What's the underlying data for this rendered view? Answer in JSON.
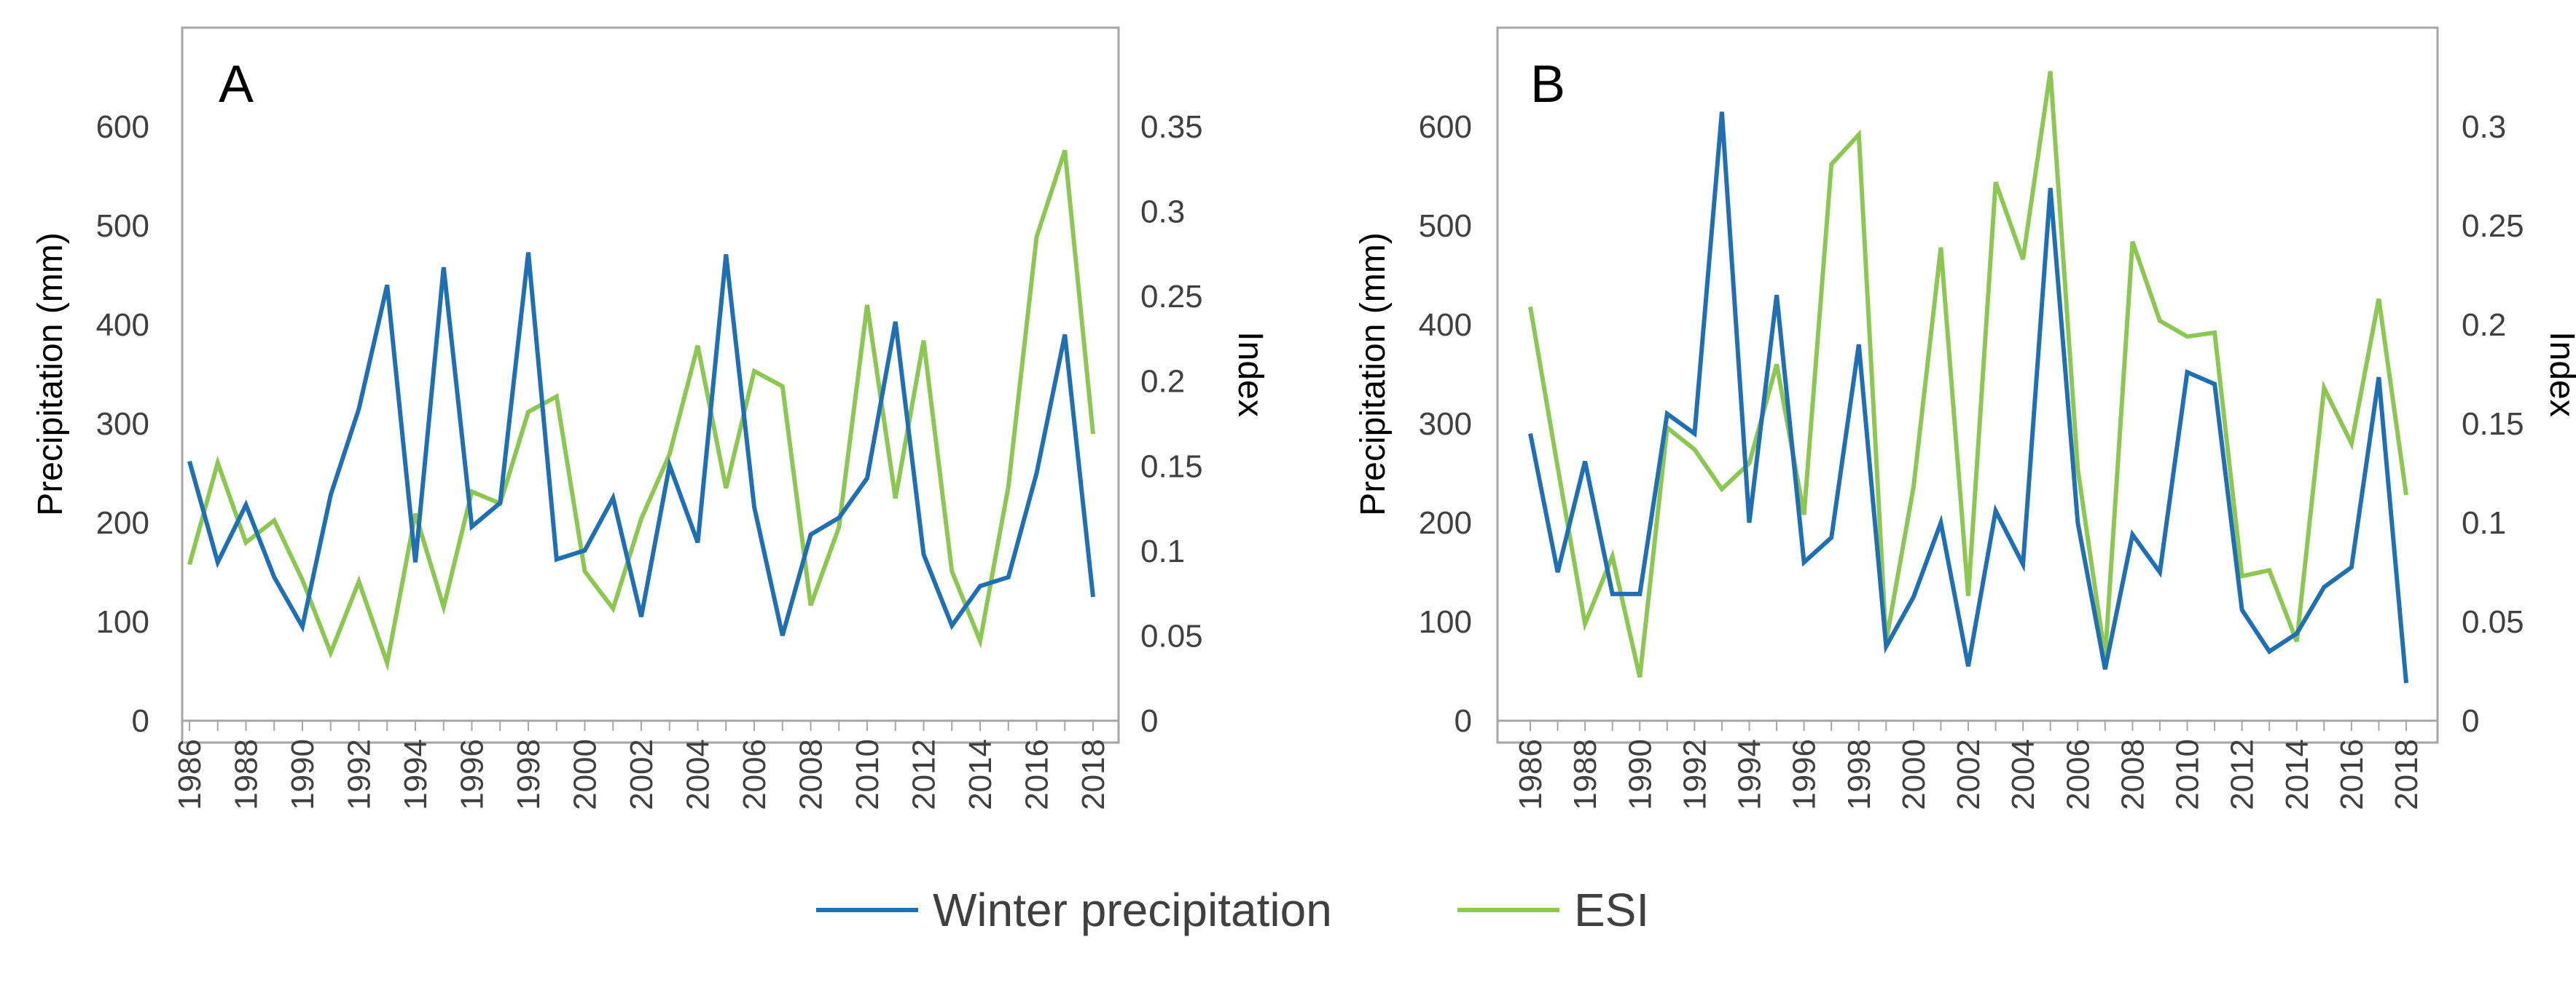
{
  "chart_data": [
    {
      "type": "line",
      "panel_label": "A",
      "x": [
        1986,
        1987,
        1988,
        1989,
        1990,
        1991,
        1992,
        1993,
        1994,
        1995,
        1996,
        1997,
        1998,
        1999,
        2000,
        2001,
        2002,
        2003,
        2004,
        2005,
        2006,
        2007,
        2008,
        2009,
        2010,
        2011,
        2012,
        2013,
        2014,
        2015,
        2016,
        2017,
        2018
      ],
      "x_ticks": [
        "1986",
        "1988",
        "1990",
        "1992",
        "1994",
        "1996",
        "1998",
        "2000",
        "2002",
        "2004",
        "2006",
        "2008",
        "2010",
        "2012",
        "2014",
        "2016",
        "2018"
      ],
      "ylabel_left": "Precipitation (mm)",
      "ylabel_right": "Index",
      "ylim_left": [
        0,
        700
      ],
      "yticks_left": [
        "0",
        "100",
        "200",
        "300",
        "400",
        "500",
        "600"
      ],
      "ylim_right": [
        0,
        0.40833
      ],
      "yticks_right": [
        "0",
        "0.05",
        "0.1",
        "0.15",
        "0.2",
        "0.25",
        "0.3",
        "0.35"
      ],
      "series": [
        {
          "name": "Winter precipitation",
          "axis": "left",
          "values": [
            262,
            160,
            218,
            145,
            95,
            228,
            315,
            440,
            160,
            458,
            196,
            220,
            473,
            163,
            172,
            225,
            105,
            258,
            180,
            471,
            216,
            86,
            188,
            205,
            245,
            403,
            168,
            96,
            136,
            145,
            250,
            390,
            125
          ]
        },
        {
          "name": "ESI",
          "axis": "right",
          "values": [
            0.092,
            0.152,
            0.105,
            0.118,
            0.083,
            0.04,
            0.082,
            0.034,
            0.122,
            0.067,
            0.135,
            0.128,
            0.182,
            0.191,
            0.088,
            0.066,
            0.119,
            0.157,
            0.221,
            0.137,
            0.206,
            0.197,
            0.068,
            0.114,
            0.245,
            0.131,
            0.224,
            0.088,
            0.047,
            0.138,
            0.285,
            0.336,
            0.169
          ]
        }
      ]
    },
    {
      "type": "line",
      "panel_label": "B",
      "x": [
        1986,
        1987,
        1988,
        1989,
        1990,
        1991,
        1992,
        1993,
        1994,
        1995,
        1996,
        1997,
        1998,
        1999,
        2000,
        2001,
        2002,
        2003,
        2004,
        2005,
        2006,
        2007,
        2008,
        2009,
        2010,
        2011,
        2012,
        2013,
        2014,
        2015,
        2016,
        2017,
        2018
      ],
      "x_ticks": [
        "1986",
        "1988",
        "1990",
        "1992",
        "1994",
        "1996",
        "1998",
        "2000",
        "2002",
        "2004",
        "2006",
        "2008",
        "2010",
        "2012",
        "2014",
        "2016",
        "2018"
      ],
      "ylabel_left": "Precipitation (mm)",
      "ylabel_right": "Index",
      "ylim_left": [
        0,
        700
      ],
      "yticks_left": [
        "0",
        "100",
        "200",
        "300",
        "400",
        "500",
        "600"
      ],
      "ylim_right": [
        0,
        0.35
      ],
      "yticks_right": [
        "0",
        "0.05",
        "0.1",
        "0.15",
        "0.2",
        "0.25",
        "0.3"
      ],
      "series": [
        {
          "name": "Winter precipitation",
          "axis": "left",
          "values": [
            290,
            150,
            262,
            128,
            128,
            310,
            290,
            615,
            200,
            430,
            160,
            185,
            380,
            75,
            125,
            200,
            55,
            212,
            158,
            538,
            200,
            52,
            188,
            150,
            352,
            340,
            112,
            70,
            88,
            135,
            155,
            347,
            38
          ]
        },
        {
          "name": "ESI",
          "axis": "right",
          "values": [
            0.209,
            0.128,
            0.049,
            0.083,
            0.022,
            0.148,
            0.137,
            0.117,
            0.13,
            0.18,
            0.104,
            0.281,
            0.296,
            0.04,
            0.118,
            0.239,
            0.063,
            0.272,
            0.233,
            0.328,
            0.127,
            0.032,
            0.242,
            0.202,
            0.194,
            0.196,
            0.073,
            0.076,
            0.04,
            0.168,
            0.14,
            0.213,
            0.114
          ]
        }
      ]
    }
  ],
  "legend": [
    {
      "label": "Winter precipitation",
      "color": "#1f6fb5"
    },
    {
      "label": "ESI",
      "color": "#8cc751"
    }
  ],
  "colors": {
    "precipitation": "#1f6fb5",
    "esi": "#8cc751",
    "frame": "#a6a6a6",
    "tick_text": "#404040"
  }
}
